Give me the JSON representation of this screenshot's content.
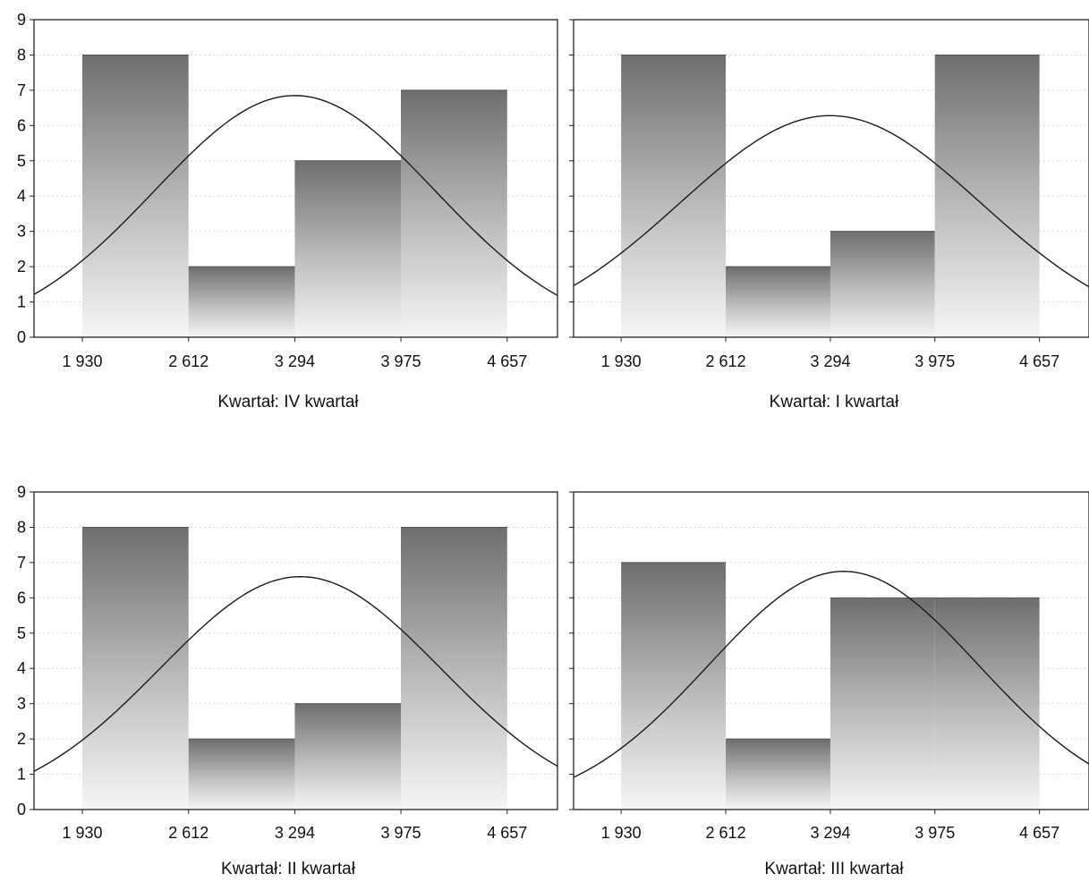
{
  "chart_data": [
    {
      "type": "bar",
      "title": "Kwartał: IV kwartał",
      "x_tick_labels": [
        "1 930",
        "2 612",
        "3 294",
        "3 975",
        "4 657"
      ],
      "bin_edges": [
        1930,
        2612,
        3294,
        3975,
        4657
      ],
      "values": [
        8,
        2,
        5,
        7
      ],
      "y_tick_labels": [
        "0",
        "1",
        "2",
        "3",
        "4",
        "5",
        "6",
        "7",
        "8",
        "9"
      ],
      "ylim": [
        0,
        9
      ],
      "xlim": [
        1620,
        4980
      ],
      "normal_curve": {
        "mean": 3294,
        "sd": 900,
        "peak": 6.85
      },
      "grid": true
    },
    {
      "type": "bar",
      "title": "Kwartał: I kwartał",
      "x_tick_labels": [
        "1 930",
        "2 612",
        "3 294",
        "3 975",
        "4 657"
      ],
      "bin_edges": [
        1930,
        2612,
        3294,
        3975,
        4657
      ],
      "values": [
        8,
        2,
        3,
        8
      ],
      "y_tick_labels": [
        "0",
        "1",
        "2",
        "3",
        "4",
        "5",
        "6",
        "7",
        "8",
        "9"
      ],
      "ylim": [
        0,
        9
      ],
      "xlim": [
        1620,
        4980
      ],
      "normal_curve": {
        "mean": 3294,
        "sd": 980,
        "peak": 6.28
      },
      "grid": true
    },
    {
      "type": "bar",
      "title": "Kwartał: II kwartał",
      "x_tick_labels": [
        "1 930",
        "2 612",
        "3 294",
        "3 975",
        "4 657"
      ],
      "bin_edges": [
        1930,
        2612,
        3294,
        3975,
        4657
      ],
      "values": [
        8,
        2,
        3,
        8
      ],
      "y_tick_labels": [
        "0",
        "1",
        "2",
        "3",
        "4",
        "5",
        "6",
        "7",
        "8",
        "9"
      ],
      "ylim": [
        0,
        9
      ],
      "xlim": [
        1620,
        4980
      ],
      "normal_curve": {
        "mean": 3330,
        "sd": 900,
        "peak": 6.6
      },
      "grid": true
    },
    {
      "type": "bar",
      "title": "Kwartał: III kwartał",
      "x_tick_labels": [
        "1 930",
        "2 612",
        "3 294",
        "3 975",
        "4 657"
      ],
      "bin_edges": [
        1930,
        2612,
        3294,
        3975,
        4657
      ],
      "values": [
        7,
        2,
        6,
        6
      ],
      "y_tick_labels": [
        "0",
        "1",
        "2",
        "3",
        "4",
        "5",
        "6",
        "7",
        "8",
        "9"
      ],
      "ylim": [
        0,
        9
      ],
      "xlim": [
        1620,
        4980
      ],
      "normal_curve": {
        "mean": 3380,
        "sd": 880,
        "peak": 6.75
      },
      "grid": true
    }
  ],
  "colors": {
    "bar_top": "#6e6e6e",
    "bar_bottom": "#f4f4f4",
    "curve": "#1a1a1a",
    "frame": "#222222",
    "grid": "#d6d6d6"
  }
}
